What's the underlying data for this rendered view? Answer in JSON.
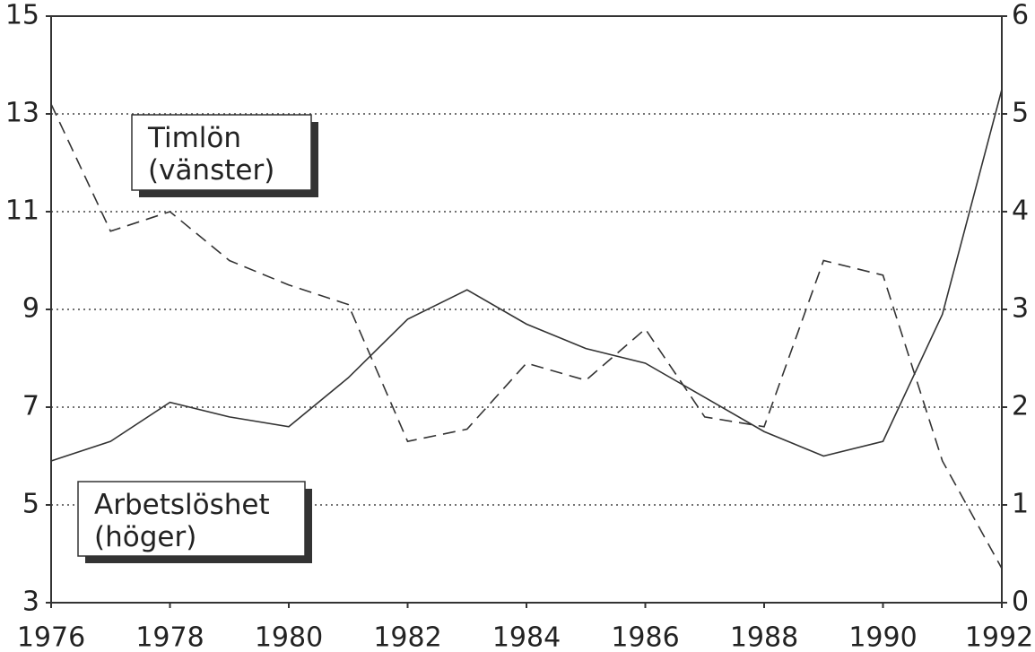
{
  "chart_data": {
    "type": "line",
    "x": [
      1976,
      1977,
      1978,
      1979,
      1980,
      1981,
      1982,
      1983,
      1984,
      1985,
      1986,
      1987,
      1988,
      1989,
      1990,
      1991,
      1992
    ],
    "series": [
      {
        "color": "#333333",
        "dash": true,
        "values": [
          13.2,
          10.6,
          11.0,
          10.0,
          9.5,
          9.1,
          6.3,
          6.55,
          7.9,
          7.55,
          8.6,
          6.8,
          6.6,
          10.0,
          9.7,
          5.9,
          3.7
        ]
      },
      {
        "color": "#333333",
        "axis": "y2",
        "values": [
          1.45,
          1.65,
          2.05,
          1.9,
          1.8,
          2.3,
          2.9,
          3.2,
          2.85,
          2.6,
          2.45,
          2.1,
          1.75,
          1.5,
          1.65,
          2.95,
          5.25
        ]
      }
    ],
    "annotations": [
      {
        "lines": [
          "Timlön",
          "(vänster)"
        ]
      },
      {
        "lines": [
          "Arbetslöshet",
          "(höger)"
        ]
      }
    ],
    "xlim": [
      1976,
      1992
    ],
    "xticks": [
      1976,
      1978,
      1980,
      1982,
      1984,
      1986,
      1988,
      1990,
      1992
    ],
    "ylim": [
      3,
      15
    ],
    "yticks": [
      3,
      5,
      7,
      9,
      11,
      13,
      15
    ],
    "y2lim": [
      0,
      6
    ],
    "y2ticks": [
      0,
      1,
      2,
      3,
      4,
      5,
      6
    ],
    "grid": true
  }
}
